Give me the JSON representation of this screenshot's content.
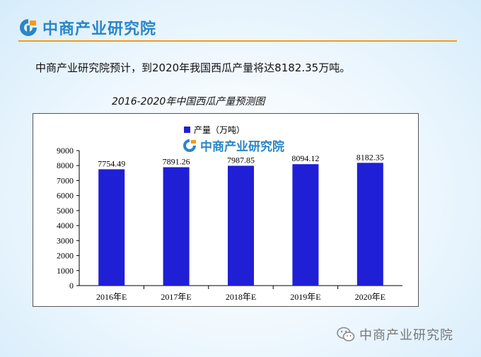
{
  "header": {
    "brand": "中商产业研究院",
    "accent": "#2a86c8",
    "rule_color": "#f39a1e"
  },
  "intro_text": "中商产业研究院预计，到2020年我国西瓜产量将达8182.35万吨。",
  "footer": {
    "icon": "wechat-icon",
    "brand": "中商产业研究院"
  },
  "chart_data": {
    "type": "bar",
    "title": "2016-2020年中国西瓜产量预测图",
    "categories": [
      "2016年E",
      "2017年E",
      "2018年E",
      "2019年E",
      "2020年E"
    ],
    "series": [
      {
        "name": "产量（万吨）",
        "values": [
          7754.49,
          7891.26,
          7987.85,
          8094.12,
          8182.35
        ],
        "color": "#1f1fd6"
      }
    ],
    "data_labels": [
      "7754.49",
      "7891.26",
      "7987.85",
      "8094.12",
      "8182.35"
    ],
    "ylim": [
      0,
      9000
    ],
    "yticks": [
      0,
      1000,
      2000,
      3000,
      4000,
      5000,
      6000,
      7000,
      8000,
      9000
    ],
    "watermark": "中商产业研究院",
    "grid": false,
    "legend_position": "top-center"
  }
}
